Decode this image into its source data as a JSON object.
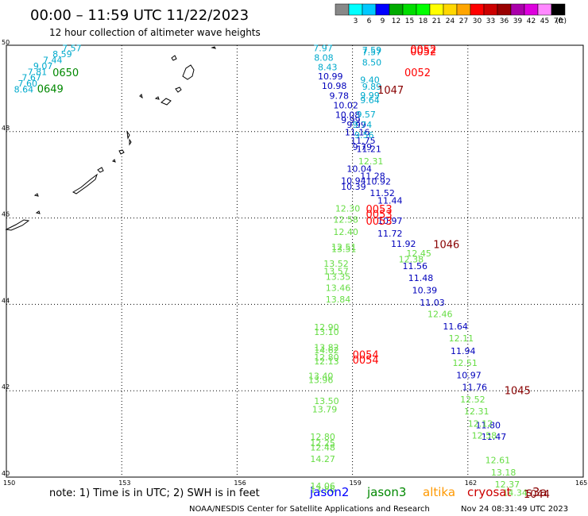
{
  "header": {
    "title": "00:00 – 11:59 UTC 11/22/2023",
    "subtitle": "12 hour collection of altimeter wave heights"
  },
  "scale": {
    "unit": "(ft)",
    "bins": [
      {
        "label": "",
        "color": "#888888"
      },
      {
        "label": "3",
        "color": "#00ffff"
      },
      {
        "label": "6",
        "color": "#00c8ff"
      },
      {
        "label": "9",
        "color": "#0000ff"
      },
      {
        "label": "12",
        "color": "#00aa00"
      },
      {
        "label": "15",
        "color": "#00dd00"
      },
      {
        "label": "18",
        "color": "#00ff00"
      },
      {
        "label": "21",
        "color": "#ffff00"
      },
      {
        "label": "24",
        "color": "#ffd700"
      },
      {
        "label": "27",
        "color": "#ffa500"
      },
      {
        "label": "30",
        "color": "#ff0000"
      },
      {
        "label": "33",
        "color": "#cc0000"
      },
      {
        "label": "36",
        "color": "#990000"
      },
      {
        "label": "39",
        "color": "#aa00aa"
      },
      {
        "label": "42",
        "color": "#dd00dd"
      },
      {
        "label": "45",
        "color": "#ff88ff"
      },
      {
        "label": "70",
        "color": "#000000"
      }
    ]
  },
  "footer": {
    "note": "note: 1) Time is in UTC; 2) SWH is in feet",
    "satellites": [
      {
        "name": "jason2",
        "color": "#0000ff"
      },
      {
        "name": "jason3",
        "color": "#008800"
      },
      {
        "name": "altika",
        "color": "#ff9900"
      },
      {
        "name": "cryosat",
        "color": "#cc0000"
      },
      {
        "name": "s3a",
        "color": "#880000"
      }
    ],
    "credit": "NOAA/NESDIS Center for Satellite Applications and Research",
    "generated": "Nov 24 08:31:49 UTC 2023"
  },
  "chart_data": {
    "type": "scatter",
    "title": "00:00 – 11:59 UTC 11/22/2023",
    "subtitle": "12 hour collection of altimeter wave heights",
    "xlabel": "",
    "ylabel": "",
    "xlim": [
      150,
      165
    ],
    "ylim": [
      40,
      50
    ],
    "xticks": [
      150,
      153,
      156,
      159,
      162,
      165
    ],
    "yticks": [
      40,
      42,
      44,
      46,
      48,
      50
    ],
    "grid": true,
    "colors": {
      "cyan": "#00aacc",
      "blue": "#0000bb",
      "lgreen": "#66dd44",
      "green": "#008800",
      "red": "#ff0000",
      "dred": "#880000"
    },
    "points": [
      {
        "x": 151.45,
        "y": 49.86,
        "v": "7.57",
        "c": "cyan"
      },
      {
        "x": 151.2,
        "y": 49.72,
        "v": "8.59",
        "c": "cyan"
      },
      {
        "x": 150.95,
        "y": 49.59,
        "v": "7.44",
        "c": "cyan"
      },
      {
        "x": 150.7,
        "y": 49.45,
        "v": "9.07",
        "c": "cyan"
      },
      {
        "x": 150.55,
        "y": 49.31,
        "v": "7.81",
        "c": "cyan"
      },
      {
        "x": 150.4,
        "y": 49.18,
        "v": "7.67",
        "c": "cyan"
      },
      {
        "x": 150.3,
        "y": 49.04,
        "v": "7.60",
        "c": "cyan"
      },
      {
        "x": 150.2,
        "y": 48.91,
        "v": "8.64",
        "c": "cyan"
      },
      {
        "x": 157.98,
        "y": 49.86,
        "v": "7.97",
        "c": "cyan"
      },
      {
        "x": 158.0,
        "y": 49.64,
        "v": "8.08",
        "c": "cyan"
      },
      {
        "x": 158.1,
        "y": 49.42,
        "v": "8.43",
        "c": "cyan"
      },
      {
        "x": 159.25,
        "y": 49.82,
        "v": "7.59",
        "c": "cyan"
      },
      {
        "x": 159.25,
        "y": 49.77,
        "v": "7.57",
        "c": "cyan"
      },
      {
        "x": 159.25,
        "y": 49.53,
        "v": "8.50",
        "c": "cyan"
      },
      {
        "x": 158.1,
        "y": 49.21,
        "v": "10.99",
        "c": "blue"
      },
      {
        "x": 158.2,
        "y": 48.99,
        "v": "10.98",
        "c": "blue"
      },
      {
        "x": 158.4,
        "y": 48.76,
        "v": "9.78",
        "c": "blue"
      },
      {
        "x": 158.5,
        "y": 48.54,
        "v": "10.02",
        "c": "blue"
      },
      {
        "x": 158.55,
        "y": 48.32,
        "v": "10.08",
        "c": "blue"
      },
      {
        "x": 158.7,
        "y": 48.2,
        "v": "9.99",
        "c": "blue"
      },
      {
        "x": 158.85,
        "y": 48.09,
        "v": "9.99",
        "c": "blue"
      },
      {
        "x": 158.8,
        "y": 47.91,
        "v": "11.16",
        "c": "blue"
      },
      {
        "x": 158.95,
        "y": 47.72,
        "v": "11.75",
        "c": "blue"
      },
      {
        "x": 159.0,
        "y": 47.57,
        "v": "9.79",
        "c": "blue"
      },
      {
        "x": 159.1,
        "y": 47.53,
        "v": "11.21",
        "c": "blue"
      },
      {
        "x": 158.85,
        "y": 47.07,
        "v": "10.04",
        "c": "blue"
      },
      {
        "x": 159.2,
        "y": 46.9,
        "v": "11.28",
        "c": "blue"
      },
      {
        "x": 158.7,
        "y": 46.79,
        "v": "10.94",
        "c": "blue"
      },
      {
        "x": 158.7,
        "y": 46.65,
        "v": "10.39",
        "c": "blue"
      },
      {
        "x": 159.35,
        "y": 46.77,
        "v": "10.92",
        "c": "blue"
      },
      {
        "x": 159.45,
        "y": 46.51,
        "v": "11.52",
        "c": "blue"
      },
      {
        "x": 159.65,
        "y": 46.33,
        "v": "11.44",
        "c": "blue"
      },
      {
        "x": 159.65,
        "y": 45.86,
        "v": "10.97",
        "c": "blue"
      },
      {
        "x": 159.65,
        "y": 45.57,
        "v": "11.72",
        "c": "blue"
      },
      {
        "x": 160.0,
        "y": 45.33,
        "v": "11.92",
        "c": "blue"
      },
      {
        "x": 160.3,
        "y": 44.82,
        "v": "11.56",
        "c": "blue"
      },
      {
        "x": 160.45,
        "y": 44.54,
        "v": "11.48",
        "c": "blue"
      },
      {
        "x": 160.55,
        "y": 44.26,
        "v": "10.39",
        "c": "blue"
      },
      {
        "x": 160.75,
        "y": 43.97,
        "v": "11.03",
        "c": "blue"
      },
      {
        "x": 161.35,
        "y": 43.42,
        "v": "11.64",
        "c": "blue"
      },
      {
        "x": 161.55,
        "y": 42.85,
        "v": "11.94",
        "c": "blue"
      },
      {
        "x": 161.7,
        "y": 42.29,
        "v": "10.97",
        "c": "blue"
      },
      {
        "x": 161.85,
        "y": 42.01,
        "v": "11.76",
        "c": "blue"
      },
      {
        "x": 162.2,
        "y": 41.13,
        "v": "11.80",
        "c": "blue"
      },
      {
        "x": 162.35,
        "y": 40.86,
        "v": "11.47",
        "c": "blue"
      },
      {
        "x": 159.1,
        "y": 48.33,
        "v": "9.57",
        "c": "cyan"
      },
      {
        "x": 159.0,
        "y": 48.09,
        "v": "9.74",
        "c": "cyan"
      },
      {
        "x": 159.05,
        "y": 47.85,
        "v": "9.56",
        "c": "cyan"
      },
      {
        "x": 159.2,
        "y": 49.13,
        "v": "9.40",
        "c": "cyan"
      },
      {
        "x": 159.25,
        "y": 48.97,
        "v": "9.89",
        "c": "cyan"
      },
      {
        "x": 159.2,
        "y": 48.77,
        "v": "9.99",
        "c": "cyan"
      },
      {
        "x": 159.2,
        "y": 48.66,
        "v": "9.64",
        "c": "cyan"
      },
      {
        "x": 159.15,
        "y": 47.24,
        "v": "12.31",
        "c": "lgreen"
      },
      {
        "x": 158.55,
        "y": 46.15,
        "v": "12.30",
        "c": "lgreen"
      },
      {
        "x": 158.5,
        "y": 45.89,
        "v": "12.58",
        "c": "lgreen"
      },
      {
        "x": 158.5,
        "y": 45.61,
        "v": "12.40",
        "c": "lgreen"
      },
      {
        "x": 158.45,
        "y": 45.26,
        "v": "12.51",
        "c": "lgreen"
      },
      {
        "x": 158.45,
        "y": 45.21,
        "v": "13.51",
        "c": "lgreen"
      },
      {
        "x": 160.4,
        "y": 45.11,
        "v": "12.45",
        "c": "lgreen"
      },
      {
        "x": 160.2,
        "y": 44.97,
        "v": "12.38",
        "c": "lgreen"
      },
      {
        "x": 158.25,
        "y": 44.87,
        "v": "13.52",
        "c": "lgreen"
      },
      {
        "x": 158.25,
        "y": 44.7,
        "v": "13.57",
        "c": "lgreen"
      },
      {
        "x": 158.3,
        "y": 44.57,
        "v": "13.35",
        "c": "lgreen"
      },
      {
        "x": 158.3,
        "y": 44.31,
        "v": "13.46",
        "c": "lgreen"
      },
      {
        "x": 158.3,
        "y": 44.04,
        "v": "13.84",
        "c": "lgreen"
      },
      {
        "x": 160.95,
        "y": 43.7,
        "v": "12.46",
        "c": "lgreen"
      },
      {
        "x": 161.5,
        "y": 43.14,
        "v": "12.11",
        "c": "lgreen"
      },
      {
        "x": 158.0,
        "y": 43.4,
        "v": "12.90",
        "c": "lgreen"
      },
      {
        "x": 158.0,
        "y": 43.29,
        "v": "13.10",
        "c": "lgreen"
      },
      {
        "x": 158.0,
        "y": 42.93,
        "v": "13.82",
        "c": "lgreen"
      },
      {
        "x": 158.0,
        "y": 42.87,
        "v": "14.62",
        "c": "lgreen"
      },
      {
        "x": 158.0,
        "y": 42.7,
        "v": "12.80",
        "c": "lgreen"
      },
      {
        "x": 158.0,
        "y": 42.61,
        "v": "12.13",
        "c": "lgreen"
      },
      {
        "x": 161.6,
        "y": 42.57,
        "v": "12.51",
        "c": "lgreen"
      },
      {
        "x": 157.85,
        "y": 42.27,
        "v": "13.40",
        "c": "lgreen"
      },
      {
        "x": 157.85,
        "y": 42.18,
        "v": "13.96",
        "c": "lgreen"
      },
      {
        "x": 161.8,
        "y": 41.73,
        "v": "12.52",
        "c": "lgreen"
      },
      {
        "x": 161.9,
        "y": 41.45,
        "v": "12.31",
        "c": "lgreen"
      },
      {
        "x": 158.0,
        "y": 41.69,
        "v": "13.50",
        "c": "lgreen"
      },
      {
        "x": 157.95,
        "y": 41.5,
        "v": "13.79",
        "c": "lgreen"
      },
      {
        "x": 162.0,
        "y": 41.17,
        "v": "12.12",
        "c": "lgreen"
      },
      {
        "x": 162.1,
        "y": 40.89,
        "v": "12.58",
        "c": "lgreen"
      },
      {
        "x": 157.9,
        "y": 40.86,
        "v": "12.80",
        "c": "lgreen"
      },
      {
        "x": 157.9,
        "y": 40.72,
        "v": "12.25",
        "c": "lgreen"
      },
      {
        "x": 157.9,
        "y": 40.62,
        "v": "12.48",
        "c": "lgreen"
      },
      {
        "x": 157.9,
        "y": 40.35,
        "v": "14.27",
        "c": "lgreen"
      },
      {
        "x": 162.45,
        "y": 40.32,
        "v": "12.61",
        "c": "lgreen"
      },
      {
        "x": 162.6,
        "y": 40.04,
        "v": "13.18",
        "c": "lgreen"
      },
      {
        "x": 162.7,
        "y": 39.76,
        "v": "12.37",
        "c": "lgreen"
      },
      {
        "x": 162.9,
        "y": 39.57,
        "v": "14.34",
        "c": "lgreen"
      },
      {
        "x": 157.9,
        "y": 39.72,
        "v": "14.06",
        "c": "lgreen"
      },
      {
        "x": 157.9,
        "y": 39.64,
        "v": "13.86",
        "c": "lgreen"
      }
    ],
    "times": [
      {
        "x": 151.2,
        "y": 49.28,
        "t": "0650",
        "c": "green"
      },
      {
        "x": 150.8,
        "y": 48.91,
        "t": "0649",
        "c": "green"
      },
      {
        "x": 160.5,
        "y": 49.82,
        "t": "0052",
        "c": "red"
      },
      {
        "x": 160.5,
        "y": 49.77,
        "t": "0052",
        "c": "red"
      },
      {
        "x": 160.35,
        "y": 49.28,
        "t": "0052",
        "c": "red"
      },
      {
        "x": 159.65,
        "y": 48.88,
        "t": "1047",
        "c": "dred"
      },
      {
        "x": 159.35,
        "y": 46.12,
        "t": "0053",
        "c": "red"
      },
      {
        "x": 159.35,
        "y": 46.0,
        "t": "0053",
        "c": "red"
      },
      {
        "x": 159.35,
        "y": 45.85,
        "t": "0053",
        "c": "red"
      },
      {
        "x": 161.1,
        "y": 45.3,
        "t": "1046",
        "c": "dred"
      },
      {
        "x": 159.0,
        "y": 42.75,
        "t": "0054",
        "c": "red"
      },
      {
        "x": 159.0,
        "y": 42.63,
        "t": "0054",
        "c": "red"
      },
      {
        "x": 162.95,
        "y": 41.92,
        "t": "1045",
        "c": "dred"
      },
      {
        "x": 163.45,
        "y": 39.52,
        "t": "1044",
        "c": "dred"
      }
    ]
  }
}
